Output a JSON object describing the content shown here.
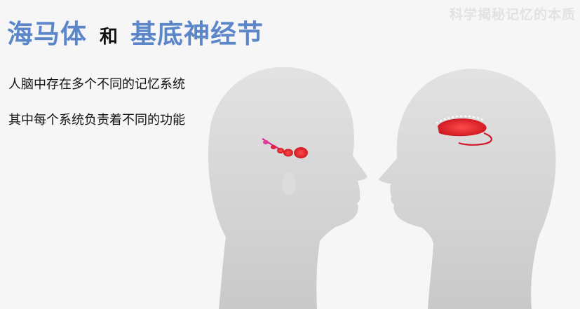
{
  "title": {
    "part1": "海马体",
    "conjunction": "和",
    "part2": "基底神经节"
  },
  "watermark": "科学揭秘记忆的本质",
  "body": {
    "line1": "人脑中存在多个不同的记忆系统",
    "line2": "其中每个系统负责着不同的功能"
  },
  "colors": {
    "title_accent": "#5b86c9",
    "highlight_red": "#e0202a",
    "silhouette_gray": "#cfcfcf"
  },
  "icons": [
    "head-silhouette-left",
    "head-silhouette-right",
    "hippocampus-illustration",
    "basal-ganglia-illustration"
  ]
}
